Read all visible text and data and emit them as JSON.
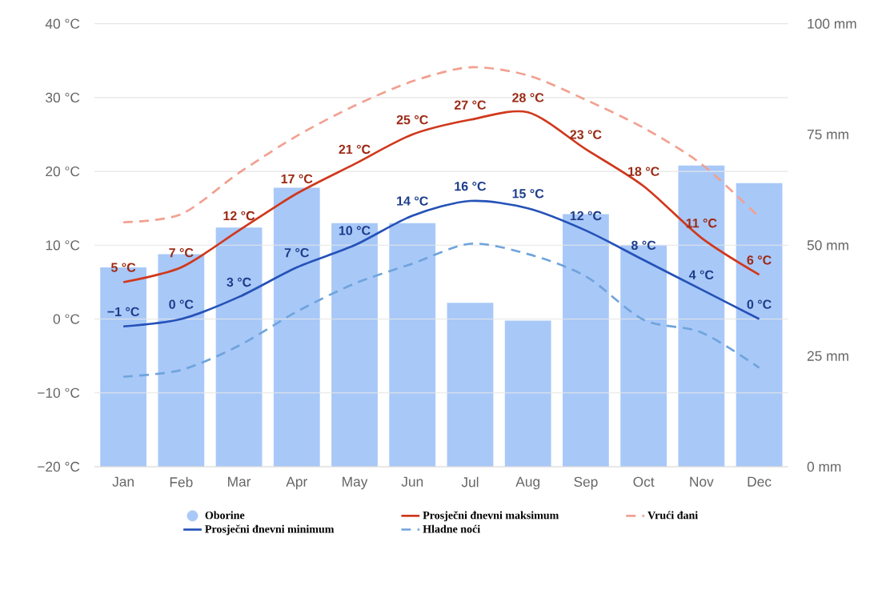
{
  "chart_data": {
    "type": "bar",
    "categories": [
      "Jan",
      "Feb",
      "Mar",
      "Apr",
      "May",
      "Jun",
      "Jul",
      "Aug",
      "Sep",
      "Oct",
      "Nov",
      "Dec"
    ],
    "ylim": [
      -20,
      40
    ],
    "yticks": [
      {
        "value": -20,
        "label": "−20 °C"
      },
      {
        "value": -10,
        "label": "−10 °C"
      },
      {
        "value": 0,
        "label": "0 °C"
      },
      {
        "value": 10,
        "label": "10 °C"
      },
      {
        "value": 20,
        "label": "20 °C"
      },
      {
        "value": 30,
        "label": "30 °C"
      },
      {
        "value": 40,
        "label": "40 °C"
      }
    ],
    "y2lim": [
      0,
      100
    ],
    "y2ticks": [
      {
        "value": 0,
        "label": "0 mm"
      },
      {
        "value": 25,
        "label": "25 mm"
      },
      {
        "value": 50,
        "label": "50 mm"
      },
      {
        "value": 75,
        "label": "75 mm"
      },
      {
        "value": 100,
        "label": "100 mm"
      }
    ],
    "grid": "y",
    "legend": "bottom",
    "series": [
      {
        "name": "Oborine",
        "axis": "y2",
        "color": "#a8c8f8",
        "values": [
          45,
          48,
          54,
          63,
          55,
          55,
          37,
          33,
          57,
          50,
          68,
          64
        ]
      },
      {
        "name": "Prosječni đnevni maksimum",
        "type": "line",
        "color": "#d0381c",
        "line_style": "solid",
        "values": [
          5,
          7,
          12,
          17,
          21,
          25,
          27,
          28,
          23,
          18,
          11,
          6
        ],
        "value_labels": [
          "5 °C",
          "7 °C",
          "12 °C",
          "17 °C",
          "21 °C",
          "25 °C",
          "27 °C",
          "28 °C",
          "23 °C",
          "18 °C",
          "11 °C",
          "6 °C"
        ]
      },
      {
        "name": "Vrući đani",
        "type": "line",
        "color": "#f2a090",
        "line_style": "dashed",
        "values": [
          13.1,
          14.2,
          19.8,
          24.8,
          28.9,
          32.2,
          34.1,
          33,
          29.7,
          25.9,
          21,
          13.8
        ]
      },
      {
        "name": "Prosječni đnevni minimum",
        "type": "line",
        "color": "#2552b8",
        "line_style": "solid",
        "values": [
          -1,
          0,
          3,
          7,
          10,
          14,
          16,
          15,
          12,
          8,
          4,
          0
        ],
        "value_labels": [
          "−1 °C",
          "0 °C",
          "3 °C",
          "7 °C",
          "10 °C",
          "14 °C",
          "16 °C",
          "15 °C",
          "12 °C",
          "8 °C",
          "4 °C",
          "0 °C"
        ]
      },
      {
        "name": "Hladne noći",
        "type": "line",
        "color": "#6fa4dc",
        "line_style": "dashed",
        "values": [
          -7.8,
          -6.9,
          -3.6,
          1,
          4.8,
          7.5,
          10.2,
          8.8,
          5.8,
          -0.1,
          -1.8,
          -6.6
        ]
      }
    ]
  }
}
